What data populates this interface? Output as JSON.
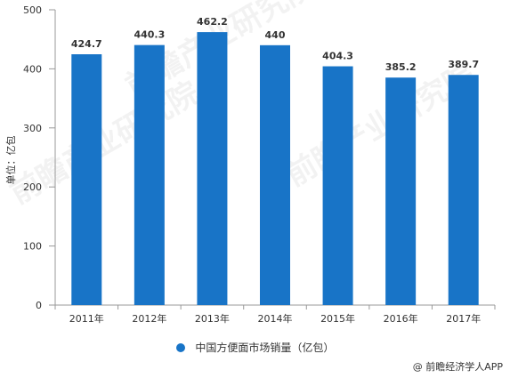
{
  "colors": {
    "bar": "#1874c7",
    "axis": "#999999",
    "grid": "#d9d9d9",
    "text": "#333333"
  },
  "chart_data": {
    "type": "bar",
    "categories": [
      "2011年",
      "2012年",
      "2013年",
      "2014年",
      "2015年",
      "2016年",
      "2017年"
    ],
    "series": [
      {
        "name": "中国方便面市场销量（亿包）",
        "values": [
          424.7,
          440.3,
          462.2,
          440,
          404.3,
          385.2,
          389.7
        ]
      }
    ],
    "data_labels": [
      "424.7",
      "440.3",
      "462.2",
      "440",
      "404.3",
      "385.2",
      "389.7"
    ],
    "ylabel": "单位：亿包",
    "ylim": [
      0,
      500
    ],
    "yticks": [
      0,
      100,
      200,
      300,
      400,
      500
    ],
    "grid": false,
    "legend": "bottom-center"
  },
  "watermark": "前瞻产业研究院",
  "credit": "@ 前瞻经济学人APP"
}
